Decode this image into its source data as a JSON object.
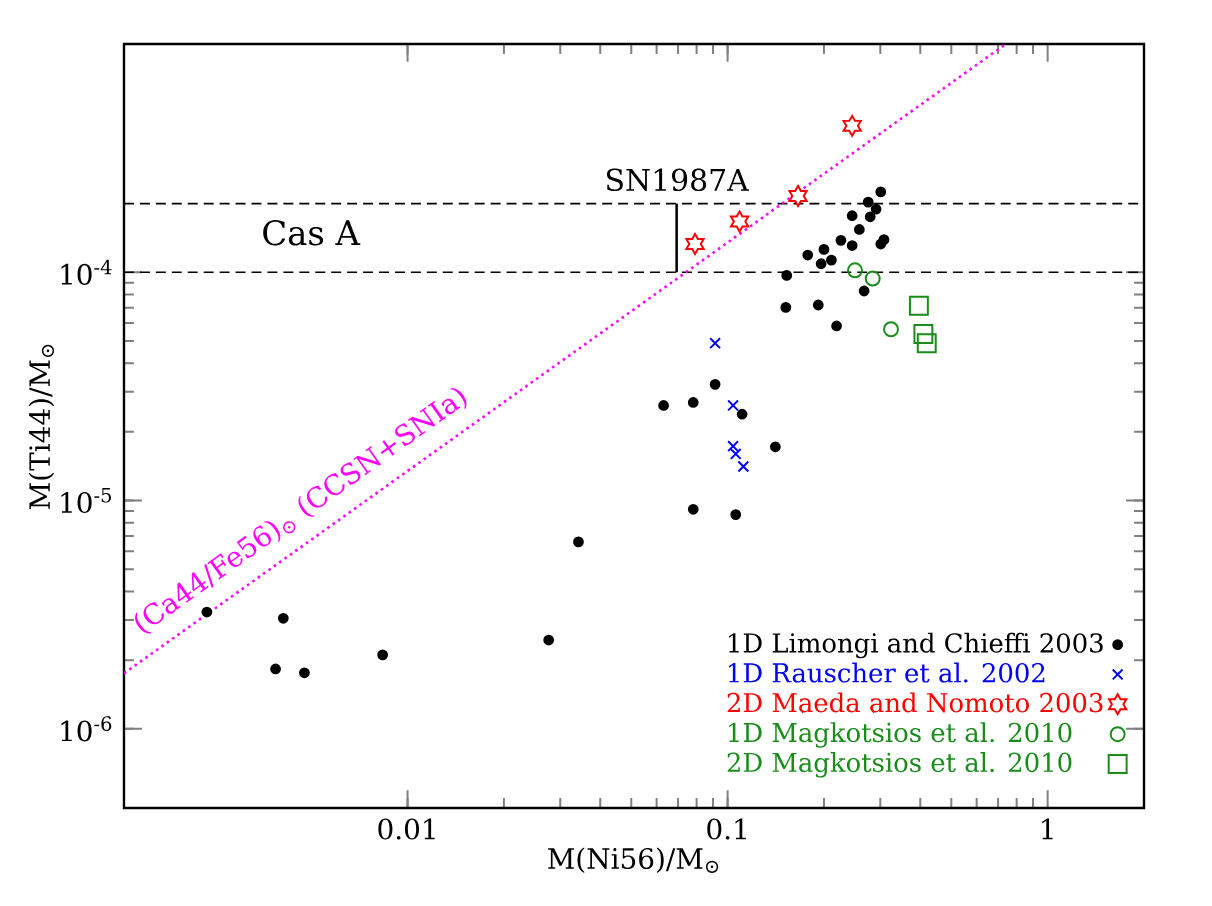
{
  "chart_data": {
    "type": "scatter",
    "xlabel": "M(Ni56)/M$_{⊙}$",
    "ylabel": "M(Ti44)/M$_{⊙}$",
    "log": "xy",
    "xlim": [
      0.0013,
      2
    ],
    "ylim": [
      4.5e-07,
      0.001
    ],
    "xticks": [
      0.01,
      0.1,
      1
    ],
    "yticks": [
      {
        "value": 1e-06,
        "label": "10$^{-6}$"
      },
      {
        "value": 1e-05,
        "label": "10$^{-5}$"
      },
      {
        "value": 0.0001,
        "label": "10$^{-4}$"
      }
    ],
    "grid": false,
    "legend": "bottom right",
    "series": [
      {
        "name": "1D Limongi and Chieffi 2003",
        "color": "#000000",
        "marker": "circle",
        "x": [
          0.00236,
          0.00409,
          0.00387,
          0.00476,
          0.00836,
          0.0276,
          0.0342,
          0.0781,
          0.106,
          0.0631,
          0.0781,
          0.0914,
          0.111,
          0.141,
          0.152,
          0.153,
          0.192,
          0.219,
          0.178,
          0.196,
          0.2,
          0.211,
          0.226,
          0.245,
          0.245,
          0.258,
          0.275,
          0.291,
          0.279,
          0.301,
          0.301,
          0.308,
          0.267
        ],
        "values": [
          3.25e-06,
          3.05e-06,
          1.83e-06,
          1.76e-06,
          2.11e-06,
          2.45e-06,
          6.59e-06,
          9.16e-06,
          8.68e-06,
          2.61e-05,
          2.69e-05,
          3.23e-05,
          2.39e-05,
          1.72e-05,
          7.02e-05,
          9.69e-05,
          7.19e-05,
          5.82e-05,
          0.000119,
          0.000109,
          0.000126,
          0.000113,
          0.000138,
          0.000131,
          0.000177,
          0.000154,
          0.000203,
          0.000189,
          0.000175,
          0.000225,
          0.000133,
          0.000139,
          8.28e-05
        ]
      },
      {
        "name": "1D Rauscher et al. 2002",
        "color": "#0000ff",
        "marker": "cross",
        "x": [
          0.0914,
          0.104,
          0.104,
          0.106,
          0.112
        ],
        "values": [
          4.89e-05,
          2.61e-05,
          1.73e-05,
          1.6e-05,
          1.41e-05
        ]
      },
      {
        "name": "2D Maeda and Nomoto 2003",
        "color": "#ff0000",
        "x": [
          0.0791,
          0.109,
          0.166,
          0.245
        ],
        "values": [
          0.000133,
          0.000167,
          0.000216,
          0.000438
        ]
      },
      {
        "name": "1D Magkotsios et al.  2010",
        "color": "#1a8c1a",
        "marker": "circle",
        "x": [
          0.25,
          0.284,
          0.324
        ],
        "values": [
          0.000102,
          9.39e-05,
          5.63e-05
        ]
      },
      {
        "name": "2D Magkotsios et al.  2010",
        "color": "#1a8c1a",
        "marker": "square",
        "x": [
          0.396,
          0.409,
          0.419
        ],
        "values": [
          7.13e-05,
          5.37e-05,
          4.89e-05
        ]
      },
      {
        "type": "line",
        "line_style": "solid",
        "color": "#000000",
        "x": [
          0.0693,
          0.0693
        ],
        "values": [
          0.0001,
          0.0002
        ]
      },
      {
        "name": "(Ca44/Fe56)$_{⊙}$ (CCSN+SNIa)",
        "type": "line",
        "line_style": "dotted",
        "color": "#ff00ff",
        "x": [
          0.0013,
          0.74
        ],
        "values": [
          1.75e-06,
          0.001
        ]
      }
    ],
    "ref_lines": [
      {
        "axis": "y",
        "value": 0.0001,
        "line_style": "dashed",
        "color": "#000000"
      },
      {
        "axis": "y",
        "value": 0.0002,
        "line_style": "dashed",
        "color": "#000000"
      }
    ],
    "annotations": [
      "Cas A",
      {
        "text": "SN1987A",
        "x": 0.0693,
        "y": 0.0002
      }
    ]
  }
}
